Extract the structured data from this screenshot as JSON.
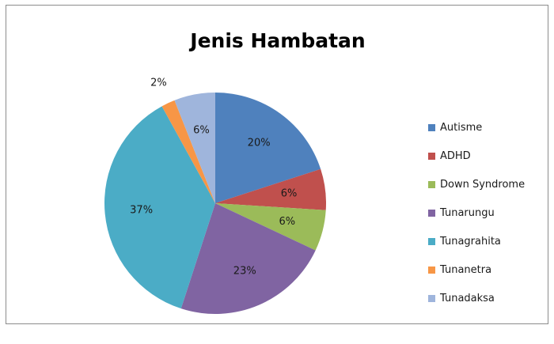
{
  "chart_data": {
    "type": "pie",
    "title": "Jenis Hambatan",
    "legend_position": "right",
    "slices": [
      {
        "name": "Autisme",
        "value": 20,
        "label": "20%",
        "color": "#4f81bd"
      },
      {
        "name": "ADHD",
        "value": 6,
        "label": "6%",
        "color": "#c0504d"
      },
      {
        "name": "Down Syndrome",
        "value": 6,
        "label": "6%",
        "color": "#9bbb59"
      },
      {
        "name": "Tunarungu",
        "value": 23,
        "label": "23%",
        "color": "#8064a2"
      },
      {
        "name": "Tunagrahita",
        "value": 37,
        "label": "37%",
        "color": "#4bacc6"
      },
      {
        "name": "Tunanetra",
        "value": 2,
        "label": "2%",
        "color": "#f79646"
      },
      {
        "name": "Tunadaksa",
        "value": 6,
        "label": "6%",
        "color": "#9fb5dc"
      }
    ]
  }
}
